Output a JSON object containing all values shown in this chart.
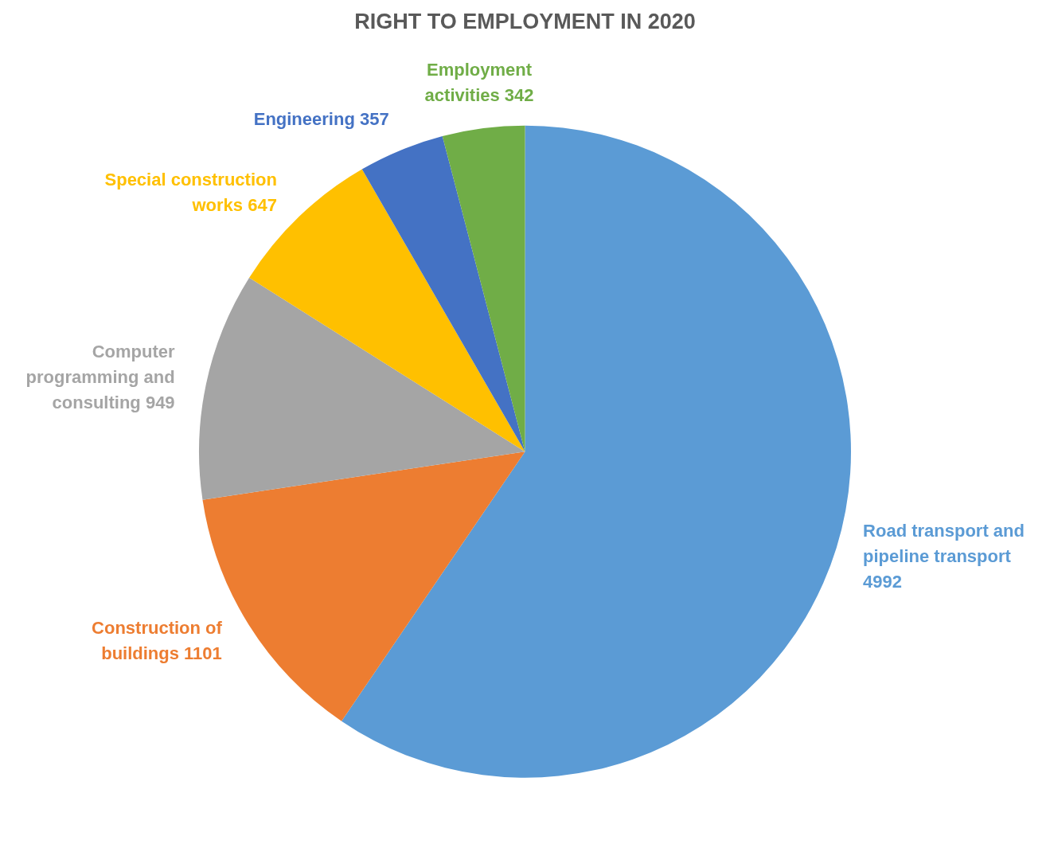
{
  "chart_data": {
    "type": "pie",
    "title": "RIGHT TO EMPLOYMENT IN 2020",
    "categories": [
      "Road transport and pipeline transport",
      "Construction of buildings",
      "Computer programming and consulting",
      "Special construction works",
      "Engineering",
      "Employment activities"
    ],
    "values": [
      4992,
      1101,
      949,
      647,
      357,
      342
    ],
    "colors": [
      "#5b9bd5",
      "#ed7d31",
      "#a5a5a5",
      "#ffc000",
      "#4472c4",
      "#70ad47"
    ],
    "data_labels": true,
    "legend": false
  }
}
